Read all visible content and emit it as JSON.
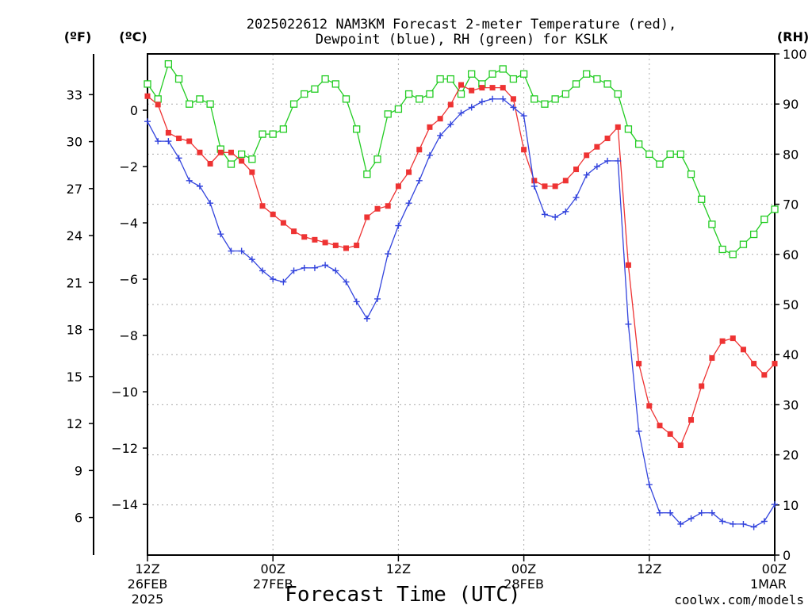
{
  "chart_data": {
    "type": "line",
    "title_line1": "2025022612 NAM3KM Forecast 2-meter Temperature (red),",
    "title_line2": "Dewpoint (blue), RH (green) for KSLK",
    "xlabel": "Forecast Time (UTC)",
    "credit": "coolwx.com/models",
    "units": {
      "fahrenheit": "(ºF)",
      "celsius": "(ºC)",
      "rh": "(RH)"
    },
    "colors": {
      "temperature": "#ee3333",
      "dewpoint": "#3344dd",
      "rh": "#22cc22",
      "grid": "#aaaaaa"
    },
    "x_hours": [
      0,
      60
    ],
    "ylim_c": [
      -15.8,
      2.0
    ],
    "ylim_rh": [
      0,
      100
    ],
    "ylim_f": [
      3.6,
      35.6
    ],
    "x_ticks": [
      {
        "hour": 0,
        "line1": "12Z",
        "line2": "26FEB",
        "line3": "2025"
      },
      {
        "hour": 12,
        "line1": "00Z",
        "line2": "27FEB",
        "line3": ""
      },
      {
        "hour": 24,
        "line1": "12Z",
        "line2": "",
        "line3": ""
      },
      {
        "hour": 36,
        "line1": "00Z",
        "line2": "28FEB",
        "line3": ""
      },
      {
        "hour": 48,
        "line1": "12Z",
        "line2": "",
        "line3": ""
      },
      {
        "hour": 60,
        "line1": "00Z",
        "line2": "1MAR",
        "line3": ""
      }
    ],
    "y_ticks_c": [
      0,
      -2,
      -4,
      -6,
      -8,
      -10,
      -12,
      -14
    ],
    "y_ticks_c_labels": [
      "0",
      "−2",
      "−4",
      "−6",
      "−8",
      "−10",
      "−12",
      "−14"
    ],
    "y_ticks_f": [
      33,
      30,
      27,
      24,
      21,
      18,
      15,
      12,
      9,
      6
    ],
    "y_ticks_rh": [
      0,
      10,
      20,
      30,
      40,
      50,
      60,
      70,
      80,
      90,
      100
    ],
    "series": [
      {
        "key": "temperature",
        "marker": "filled-square",
        "x": [
          0,
          1,
          2,
          3,
          4,
          5,
          6,
          7,
          8,
          9,
          10,
          11,
          12,
          13,
          14,
          15,
          16,
          17,
          18,
          19,
          20,
          21,
          22,
          23,
          24,
          25,
          26,
          27,
          28,
          29,
          30,
          31,
          32,
          33,
          34,
          35,
          36,
          37,
          38,
          39,
          40,
          41,
          42,
          43,
          44,
          45,
          46,
          47,
          48,
          49,
          50,
          51,
          52,
          53,
          54,
          55,
          56,
          57,
          58,
          59,
          60
        ],
        "values": [
          0.5,
          0.2,
          -0.8,
          -1.0,
          -1.1,
          -1.5,
          -1.9,
          -1.5,
          -1.5,
          -1.8,
          -2.2,
          -3.4,
          -3.7,
          -4.0,
          -4.3,
          -4.5,
          -4.6,
          -4.7,
          -4.8,
          -4.9,
          -4.8,
          -3.8,
          -3.5,
          -3.4,
          -2.7,
          -2.2,
          -1.4,
          -0.6,
          -0.3,
          0.2,
          0.9,
          0.7,
          0.8,
          0.8,
          0.8,
          0.4,
          -1.4,
          -2.5,
          -2.7,
          -2.7,
          -2.5,
          -2.1,
          -1.6,
          -1.3,
          -1.0,
          -0.6,
          -5.5,
          -9.0,
          -10.5,
          -11.2,
          -11.5,
          -11.9,
          -11.0,
          -9.8,
          -8.8,
          -8.2,
          -8.1,
          -8.5,
          -9.0,
          -9.4,
          -9.0
        ]
      },
      {
        "key": "dewpoint",
        "marker": "plus",
        "x": [
          0,
          1,
          2,
          3,
          4,
          5,
          6,
          7,
          8,
          9,
          10,
          11,
          12,
          13,
          14,
          15,
          16,
          17,
          18,
          19,
          20,
          21,
          22,
          23,
          24,
          25,
          26,
          27,
          28,
          29,
          30,
          31,
          32,
          33,
          34,
          35,
          36,
          37,
          38,
          39,
          40,
          41,
          42,
          43,
          44,
          45,
          46,
          47,
          48,
          49,
          50,
          51,
          52,
          53,
          54,
          55,
          56,
          57,
          58,
          59,
          60
        ],
        "values": [
          -0.4,
          -1.1,
          -1.1,
          -1.7,
          -2.5,
          -2.7,
          -3.3,
          -4.4,
          -5.0,
          -5.0,
          -5.3,
          -5.7,
          -6.0,
          -6.1,
          -5.7,
          -5.6,
          -5.6,
          -5.5,
          -5.7,
          -6.1,
          -6.8,
          -7.4,
          -6.7,
          -5.1,
          -4.1,
          -3.3,
          -2.5,
          -1.6,
          -0.9,
          -0.5,
          -0.1,
          0.1,
          0.3,
          0.4,
          0.4,
          0.1,
          -0.2,
          -2.7,
          -3.7,
          -3.8,
          -3.6,
          -3.1,
          -2.3,
          -2.0,
          -1.8,
          -1.8,
          -7.6,
          -11.4,
          -13.3,
          -14.3,
          -14.3,
          -14.7,
          -14.5,
          -14.3,
          -14.3,
          -14.6,
          -14.7,
          -14.7,
          -14.8,
          -14.6,
          -14.0
        ]
      },
      {
        "key": "rh",
        "marker": "open-square",
        "x": [
          0,
          1,
          2,
          3,
          4,
          5,
          6,
          7,
          8,
          9,
          10,
          11,
          12,
          13,
          14,
          15,
          16,
          17,
          18,
          19,
          20,
          21,
          22,
          23,
          24,
          25,
          26,
          27,
          28,
          29,
          30,
          31,
          32,
          33,
          34,
          35,
          36,
          37,
          38,
          39,
          40,
          41,
          42,
          43,
          44,
          45,
          46,
          47,
          48,
          49,
          50,
          51,
          52,
          53,
          54,
          55,
          56,
          57,
          58,
          59,
          60
        ],
        "values": [
          94,
          91,
          98,
          95,
          90,
          91,
          90,
          81,
          78,
          80,
          79,
          84,
          84,
          85,
          90,
          92,
          93,
          95,
          94,
          91,
          85,
          76,
          79,
          88,
          89,
          92,
          91,
          92,
          95,
          95,
          92,
          96,
          94,
          96,
          97,
          95,
          96,
          91,
          90,
          91,
          92,
          94,
          96,
          95,
          94,
          92,
          85,
          82,
          80,
          78,
          80,
          80,
          76,
          71,
          66,
          61,
          60,
          62,
          64,
          67,
          69
        ]
      }
    ]
  }
}
